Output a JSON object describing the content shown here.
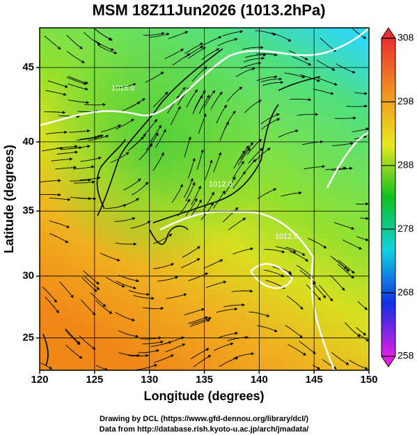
{
  "chart_data": {
    "type": "map",
    "title": "MSM 18Z11Jun2026 (1013.2hPa)",
    "x_label": "Longitude (degrees)",
    "y_label": "Latitude  (degrees)",
    "xlim": [
      120,
      150
    ],
    "xticks": [
      120,
      125,
      130,
      135,
      140,
      145,
      150
    ],
    "ylim": [
      22.3,
      47.5
    ],
    "yticks": [
      25,
      30,
      35,
      40,
      45
    ],
    "projection": "mercator",
    "grid": true,
    "colorbar": {
      "lim": [
        258,
        308
      ],
      "ticks": [
        258,
        268,
        278,
        288,
        298,
        308
      ],
      "colors": [
        "#e020e0",
        "#1030e0",
        "#10d0e0",
        "#10c020",
        "#e8e820",
        "#f09020",
        "#e83030"
      ]
    },
    "annotations": [
      "1016.0",
      "1012.0",
      "1012.0"
    ],
    "footer": [
      "Drawing by DCL (https://www.gfd-dennou.org/library/dcl/)",
      "Data from http://database.rish.kyoto-u.ac.jp/arch/jmadata/"
    ]
  }
}
